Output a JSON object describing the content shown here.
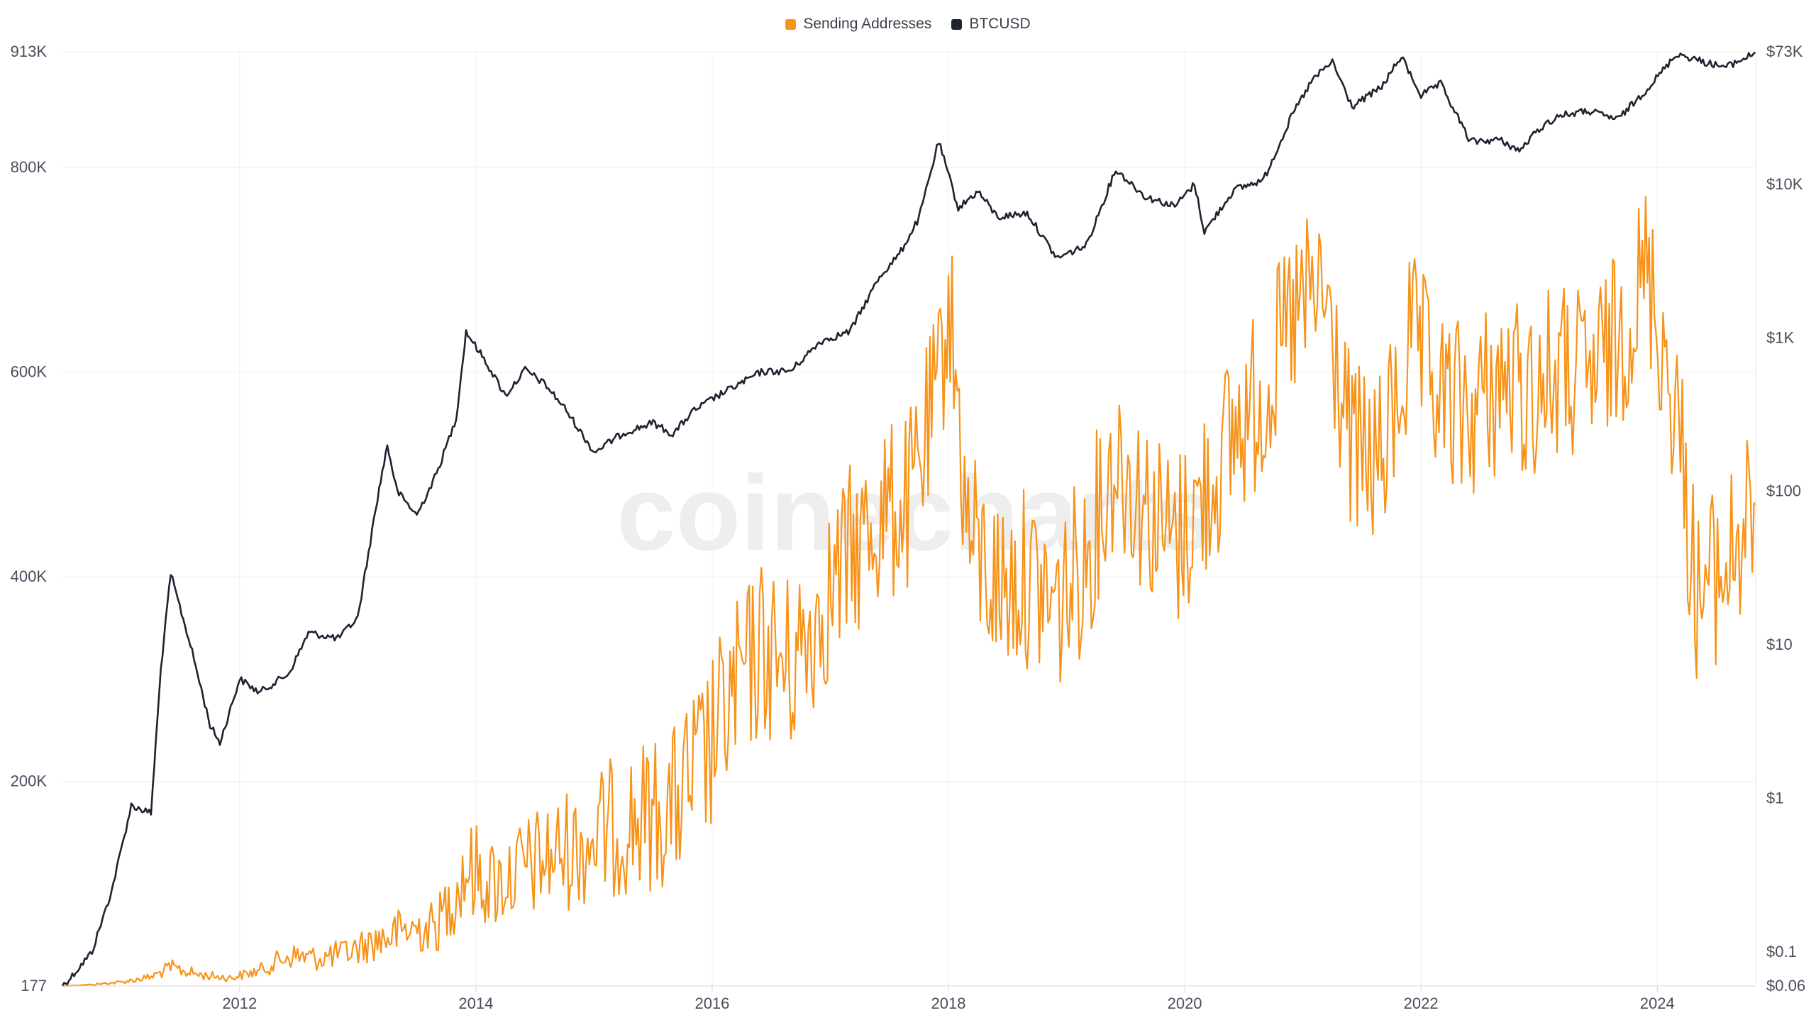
{
  "chart_data": {
    "type": "line",
    "title": "",
    "watermark": "coinecharts",
    "legend_position": "top-center",
    "grid": true,
    "x_axis": {
      "ticks": [
        "2012",
        "2014",
        "2016",
        "2018",
        "2020",
        "2022",
        "2024"
      ],
      "range": [
        "2010-07",
        "2024-11"
      ]
    },
    "y_axis_left": {
      "scale": "linear",
      "ticks": [
        "913K",
        "800K",
        "600K",
        "400K",
        "200K",
        "177"
      ],
      "tick_values": [
        913000,
        800000,
        600000,
        400000,
        200000,
        177
      ],
      "range": [
        177,
        913000
      ]
    },
    "y_axis_right": {
      "scale": "log",
      "ticks": [
        "$73K",
        "$10K",
        "$1K",
        "$100",
        "$10",
        "$1",
        "$0.1",
        "$0.06"
      ],
      "tick_values": [
        73000,
        10000,
        1000,
        100,
        10,
        1,
        0.1,
        0.06
      ],
      "range": [
        0.06,
        73000
      ]
    },
    "series": [
      {
        "name": "Sending Addresses",
        "color": "#f7931a",
        "axis": "left",
        "points": [
          [
            "2010-07",
            177
          ],
          [
            "2010-10",
            1500
          ],
          [
            "2011-01",
            4000
          ],
          [
            "2011-04",
            9000
          ],
          [
            "2011-06",
            18000
          ],
          [
            "2011-09",
            11000
          ],
          [
            "2011-12",
            8000
          ],
          [
            "2012-03",
            15000
          ],
          [
            "2012-06",
            30000
          ],
          [
            "2012-09",
            27000
          ],
          [
            "2012-12",
            33000
          ],
          [
            "2013-03",
            45000
          ],
          [
            "2013-06",
            55000
          ],
          [
            "2013-09",
            58000
          ],
          [
            "2013-12",
            115000
          ],
          [
            "2014-03",
            100000
          ],
          [
            "2014-06",
            115000
          ],
          [
            "2014-09",
            128000
          ],
          [
            "2014-12",
            140000
          ],
          [
            "2015-03",
            155000
          ],
          [
            "2015-06",
            165000
          ],
          [
            "2015-09",
            175000
          ],
          [
            "2015-12",
            215000
          ],
          [
            "2016-03",
            280000
          ],
          [
            "2016-06",
            330000
          ],
          [
            "2016-09",
            310000
          ],
          [
            "2016-12",
            370000
          ],
          [
            "2017-03",
            420000
          ],
          [
            "2017-06",
            460000
          ],
          [
            "2017-09",
            470000
          ],
          [
            "2017-12",
            580000
          ],
          [
            "2018-01",
            680000
          ],
          [
            "2018-03",
            440000
          ],
          [
            "2018-06",
            390000
          ],
          [
            "2018-09",
            400000
          ],
          [
            "2018-12",
            370000
          ],
          [
            "2019-03",
            420000
          ],
          [
            "2019-06",
            520000
          ],
          [
            "2019-09",
            470000
          ],
          [
            "2019-12",
            430000
          ],
          [
            "2020-03",
            480000
          ],
          [
            "2020-06",
            540000
          ],
          [
            "2020-09",
            580000
          ],
          [
            "2020-12",
            650000
          ],
          [
            "2021-03",
            680000
          ],
          [
            "2021-06",
            520000
          ],
          [
            "2021-09",
            510000
          ],
          [
            "2021-12",
            630000
          ],
          [
            "2022-03",
            570000
          ],
          [
            "2022-06",
            560000
          ],
          [
            "2022-09",
            590000
          ],
          [
            "2022-12",
            580000
          ],
          [
            "2023-03",
            600000
          ],
          [
            "2023-06",
            590000
          ],
          [
            "2023-09",
            630000
          ],
          [
            "2023-12",
            700000
          ],
          [
            "2024-03",
            560000
          ],
          [
            "2024-05",
            380000
          ],
          [
            "2024-08",
            410000
          ],
          [
            "2024-11",
            470000
          ]
        ]
      },
      {
        "name": "BTCUSD",
        "color": "#1e2330",
        "axis": "right",
        "points": [
          [
            "2010-07",
            0.06
          ],
          [
            "2010-08",
            0.07
          ],
          [
            "2010-10",
            0.1
          ],
          [
            "2010-12",
            0.25
          ],
          [
            "2011-02",
            0.9
          ],
          [
            "2011-04",
            0.8
          ],
          [
            "2011-05",
            7
          ],
          [
            "2011-06",
            29
          ],
          [
            "2011-08",
            10
          ],
          [
            "2011-10",
            3
          ],
          [
            "2011-11",
            2.3
          ],
          [
            "2012-01",
            6
          ],
          [
            "2012-03",
            4.9
          ],
          [
            "2012-06",
            6.5
          ],
          [
            "2012-08",
            12
          ],
          [
            "2012-11",
            11
          ],
          [
            "2013-01",
            15
          ],
          [
            "2013-03",
            90
          ],
          [
            "2013-04",
            200
          ],
          [
            "2013-05",
            100
          ],
          [
            "2013-07",
            70
          ],
          [
            "2013-09",
            130
          ],
          [
            "2013-11",
            300
          ],
          [
            "2013-12",
            1100
          ],
          [
            "2014-02",
            700
          ],
          [
            "2014-04",
            420
          ],
          [
            "2014-06",
            620
          ],
          [
            "2014-08",
            500
          ],
          [
            "2014-10",
            350
          ],
          [
            "2015-01",
            180
          ],
          [
            "2015-04",
            240
          ],
          [
            "2015-07",
            280
          ],
          [
            "2015-09",
            235
          ],
          [
            "2015-11",
            330
          ],
          [
            "2016-01",
            400
          ],
          [
            "2016-06",
            600
          ],
          [
            "2016-09",
            610
          ],
          [
            "2016-12",
            950
          ],
          [
            "2017-03",
            1100
          ],
          [
            "2017-06",
            2500
          ],
          [
            "2017-08",
            3500
          ],
          [
            "2017-10",
            6000
          ],
          [
            "2017-12",
            19000
          ],
          [
            "2018-02",
            7000
          ],
          [
            "2018-04",
            9000
          ],
          [
            "2018-06",
            6100
          ],
          [
            "2018-09",
            6500
          ],
          [
            "2018-12",
            3300
          ],
          [
            "2019-03",
            4000
          ],
          [
            "2019-06",
            12500
          ],
          [
            "2019-09",
            8300
          ],
          [
            "2019-12",
            7200
          ],
          [
            "2020-02",
            10000
          ],
          [
            "2020-03",
            4900
          ],
          [
            "2020-06",
            9200
          ],
          [
            "2020-09",
            10700
          ],
          [
            "2020-12",
            29000
          ],
          [
            "2021-02",
            48000
          ],
          [
            "2021-04",
            63000
          ],
          [
            "2021-06",
            32000
          ],
          [
            "2021-09",
            43000
          ],
          [
            "2021-11",
            68000
          ],
          [
            "2022-01",
            38000
          ],
          [
            "2022-03",
            45000
          ],
          [
            "2022-06",
            19000
          ],
          [
            "2022-09",
            19500
          ],
          [
            "2022-11",
            16500
          ],
          [
            "2023-01",
            23000
          ],
          [
            "2023-03",
            28000
          ],
          [
            "2023-06",
            30000
          ],
          [
            "2023-09",
            26500
          ],
          [
            "2023-12",
            42000
          ],
          [
            "2024-03",
            71000
          ],
          [
            "2024-06",
            62000
          ],
          [
            "2024-08",
            58000
          ],
          [
            "2024-11",
            72000
          ]
        ]
      }
    ]
  }
}
